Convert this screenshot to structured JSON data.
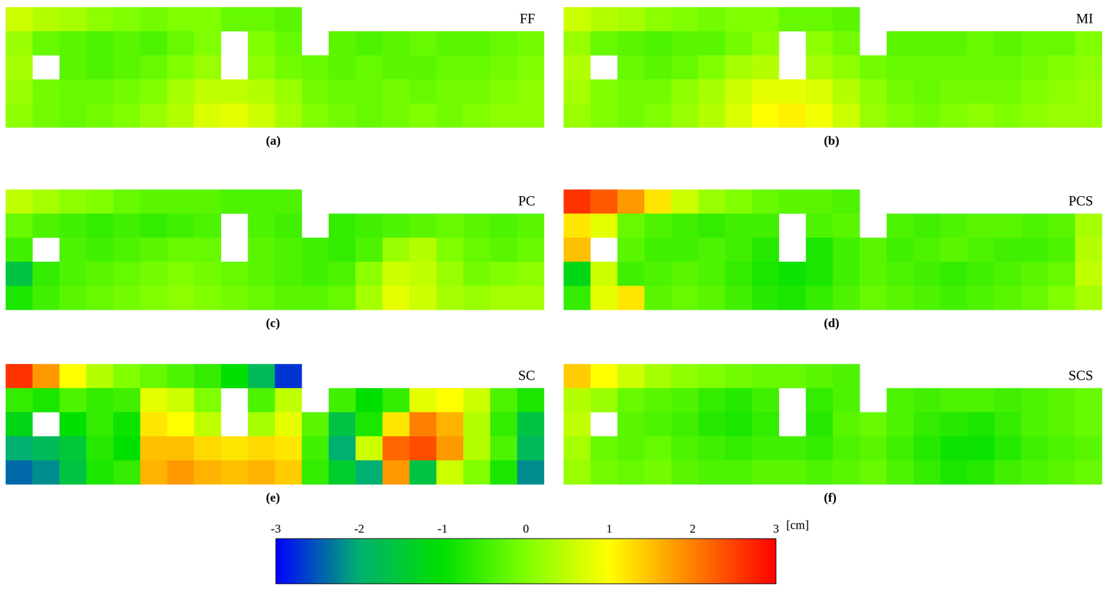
{
  "chart_data": {
    "type": "heatmap",
    "panels": [
      {
        "title": "FF",
        "letter": "(a)",
        "cells": [
          [
            0.6,
            0.4,
            0.3,
            0.1,
            0,
            -0.1,
            0,
            0,
            -0.2,
            -0.2,
            -0.3,
            null,
            null,
            null,
            null,
            null,
            null,
            null,
            null,
            null
          ],
          [
            0.2,
            -0.2,
            -0.3,
            -0.4,
            -0.3,
            -0.4,
            -0.2,
            0,
            null,
            0,
            -0.2,
            null,
            -0.3,
            -0.4,
            -0.3,
            -0.2,
            -0.3,
            -0.3,
            -0.2,
            -0.1
          ],
          [
            0.3,
            null,
            -0.3,
            -0.4,
            -0.3,
            -0.2,
            0,
            0.2,
            null,
            0.1,
            -0.1,
            -0.2,
            -0.3,
            -0.2,
            -0.3,
            -0.3,
            -0.2,
            -0.2,
            -0.1,
            0
          ],
          [
            0.2,
            -0.1,
            -0.2,
            -0.2,
            -0.1,
            0,
            0.3,
            0.5,
            0.5,
            0.4,
            0.2,
            -0.1,
            -0.2,
            -0.2,
            -0.1,
            -0.2,
            -0.1,
            -0.1,
            0,
            0.1
          ],
          [
            0.1,
            -0.1,
            -0.2,
            -0.1,
            0,
            0.2,
            0.4,
            0.7,
            0.8,
            0.6,
            0.3,
            0,
            -0.1,
            -0.2,
            -0.1,
            0,
            -0.1,
            0,
            0.1,
            0.1
          ]
        ]
      },
      {
        "title": "MI",
        "letter": "(b)",
        "cells": [
          [
            0.6,
            0.4,
            0.3,
            0.1,
            0,
            -0.1,
            0,
            0,
            -0.2,
            -0.2,
            -0.3,
            null,
            null,
            null,
            null,
            null,
            null,
            null,
            null,
            null
          ],
          [
            0.2,
            -0.2,
            -0.3,
            -0.4,
            -0.3,
            -0.3,
            -0.1,
            0.1,
            null,
            0.1,
            -0.1,
            null,
            -0.3,
            -0.3,
            -0.3,
            -0.2,
            -0.3,
            -0.2,
            -0.2,
            0
          ],
          [
            0.4,
            null,
            -0.2,
            -0.3,
            -0.2,
            0,
            0.3,
            0.4,
            null,
            0.3,
            0.1,
            -0.1,
            -0.2,
            -0.2,
            -0.2,
            -0.2,
            -0.2,
            -0.1,
            0,
            0.1
          ],
          [
            0.3,
            0,
            -0.1,
            -0.1,
            0.1,
            0.3,
            0.6,
            0.8,
            0.8,
            0.7,
            0.4,
            0.1,
            -0.1,
            -0.2,
            -0.1,
            -0.1,
            -0.1,
            0,
            0.1,
            0.2
          ],
          [
            0.2,
            0,
            -0.1,
            0,
            0.2,
            0.4,
            0.7,
            1.0,
            1.1,
            0.9,
            0.6,
            0.2,
            0,
            -0.1,
            0,
            0.1,
            0,
            0.1,
            0.2,
            0.2
          ]
        ]
      },
      {
        "title": "PC",
        "letter": "(c)",
        "cells": [
          [
            0.5,
            0.3,
            0.1,
            0,
            -0.2,
            -0.3,
            -0.3,
            -0.3,
            -0.4,
            -0.4,
            -0.4,
            null,
            null,
            null,
            null,
            null,
            null,
            null,
            null,
            null
          ],
          [
            -0.2,
            -0.4,
            -0.5,
            -0.6,
            -0.5,
            -0.6,
            -0.5,
            -0.4,
            null,
            -0.4,
            -0.5,
            null,
            -0.6,
            -0.5,
            -0.4,
            -0.3,
            -0.2,
            -0.3,
            -0.4,
            -0.3
          ],
          [
            -0.5,
            null,
            -0.4,
            -0.5,
            -0.4,
            -0.3,
            -0.2,
            -0.2,
            null,
            -0.3,
            -0.4,
            -0.5,
            -0.6,
            -0.4,
            0.2,
            0.4,
            0,
            -0.2,
            -0.3,
            -0.2
          ],
          [
            -1.6,
            -0.6,
            -0.4,
            -0.3,
            -0.2,
            -0.1,
            0,
            -0.1,
            -0.2,
            -0.3,
            -0.4,
            -0.5,
            -0.4,
            0.1,
            0.6,
            0.5,
            0.2,
            -0.1,
            0,
            0.1
          ],
          [
            -0.8,
            -0.5,
            -0.3,
            -0.2,
            -0.1,
            0,
            0.1,
            0,
            -0.1,
            -0.2,
            -0.3,
            -0.3,
            -0.2,
            0.3,
            0.8,
            0.6,
            0.3,
            0.2,
            0.3,
            0.3
          ]
        ]
      },
      {
        "title": "PCS",
        "letter": "(d)",
        "cells": [
          [
            2.6,
            2.3,
            1.8,
            1.2,
            0.6,
            0.2,
            0,
            -0.2,
            -0.3,
            -0.3,
            -0.4,
            null,
            null,
            null,
            null,
            null,
            null,
            null,
            null,
            null
          ],
          [
            1.2,
            0.8,
            -0.2,
            -0.4,
            -0.5,
            -0.6,
            -0.5,
            -0.5,
            null,
            -0.4,
            -0.3,
            null,
            -0.4,
            -0.5,
            -0.4,
            -0.3,
            -0.3,
            -0.4,
            -0.3,
            0.3
          ],
          [
            1.5,
            null,
            -0.3,
            -0.5,
            -0.5,
            -0.4,
            -0.5,
            -0.7,
            null,
            -0.8,
            -0.5,
            -0.3,
            -0.5,
            -0.4,
            -0.3,
            -0.4,
            -0.5,
            -0.5,
            -0.4,
            0.4
          ],
          [
            -1.2,
            0.6,
            -0.5,
            -0.4,
            -0.3,
            -0.4,
            -0.6,
            -0.8,
            -0.9,
            -0.8,
            -0.5,
            -0.3,
            -0.4,
            -0.5,
            -0.6,
            -0.5,
            -0.4,
            -0.3,
            -0.2,
            0.5
          ],
          [
            -0.6,
            0.8,
            1.2,
            -0.3,
            -0.2,
            -0.3,
            -0.5,
            -0.7,
            -0.8,
            -0.6,
            -0.4,
            -0.2,
            -0.3,
            -0.4,
            -0.5,
            -0.4,
            -0.3,
            -0.2,
            0,
            0.3
          ]
        ]
      },
      {
        "title": "SC",
        "letter": "(e)",
        "cells": [
          [
            2.6,
            1.8,
            1.0,
            0.4,
            0,
            -0.2,
            -0.4,
            -0.6,
            -1.0,
            -1.8,
            -2.7,
            null,
            null,
            null,
            null,
            null,
            null,
            null,
            null,
            null
          ],
          [
            -0.6,
            -0.8,
            -0.4,
            -0.6,
            -0.5,
            0.8,
            0.6,
            0,
            null,
            -0.4,
            0.5,
            null,
            -0.5,
            -1.0,
            -0.6,
            0.8,
            1.0,
            0.6,
            -0.4,
            -0.8
          ],
          [
            -1.2,
            null,
            -1.0,
            -0.6,
            -0.9,
            1.2,
            1.0,
            0.5,
            null,
            0.3,
            0.8,
            -0.3,
            -1.6,
            -0.8,
            1.2,
            2.0,
            1.6,
            0.4,
            -0.6,
            -1.6
          ],
          [
            -2.0,
            -1.8,
            -1.5,
            -0.7,
            -1.0,
            1.5,
            1.5,
            1.3,
            1.2,
            1.3,
            1.2,
            -0.5,
            -2.0,
            0.6,
            2.2,
            2.4,
            1.8,
            0.4,
            -0.4,
            -1.8
          ],
          [
            -2.4,
            -2.2,
            -1.6,
            -0.8,
            -0.6,
            1.6,
            1.8,
            1.6,
            1.5,
            1.6,
            1.4,
            -0.6,
            -1.4,
            -2.0,
            1.8,
            -1.6,
            0.6,
            0,
            -0.8,
            -2.2
          ]
        ]
      },
      {
        "title": "SCS",
        "letter": "(f)",
        "cells": [
          [
            1.4,
            1.0,
            0.6,
            0.3,
            0.1,
            0,
            -0.1,
            -0.2,
            -0.2,
            -0.3,
            -0.4,
            null,
            null,
            null,
            null,
            null,
            null,
            null,
            null,
            null
          ],
          [
            0.4,
            0.2,
            -0.2,
            -0.3,
            -0.4,
            -0.6,
            -0.7,
            -0.5,
            null,
            -0.6,
            -0.4,
            null,
            -0.4,
            -0.5,
            -0.4,
            -0.4,
            -0.5,
            -0.4,
            -0.3,
            -0.2
          ],
          [
            0.5,
            null,
            -0.3,
            -0.4,
            -0.5,
            -0.7,
            -0.8,
            -0.6,
            null,
            -0.7,
            -0.3,
            -0.2,
            -0.4,
            -0.6,
            -0.7,
            -0.8,
            -0.6,
            -0.4,
            -0.3,
            -0.2
          ],
          [
            0.3,
            -0.2,
            -0.3,
            -0.2,
            -0.4,
            -0.5,
            -0.6,
            -0.5,
            -0.5,
            -0.6,
            -0.4,
            -0.3,
            -0.5,
            -0.7,
            -0.9,
            -0.9,
            -0.7,
            -0.5,
            -0.4,
            -0.3
          ],
          [
            0.2,
            -0.1,
            -0.2,
            -0.1,
            -0.3,
            -0.4,
            -0.4,
            -0.3,
            -0.3,
            -0.4,
            -0.3,
            -0.2,
            -0.4,
            -0.6,
            -0.8,
            -0.7,
            -0.5,
            -0.4,
            -0.3,
            -0.2
          ]
        ]
      }
    ],
    "colorbar": {
      "range": [
        -3,
        3
      ],
      "ticks": [
        -3,
        -2,
        -1,
        0,
        1,
        2,
        3
      ],
      "unit": "[cm]",
      "colors": [
        "#0000ff",
        "#00b070",
        "#00e000",
        "#80ff00",
        "#ffff00",
        "#ff8000",
        "#ff0000"
      ]
    }
  }
}
